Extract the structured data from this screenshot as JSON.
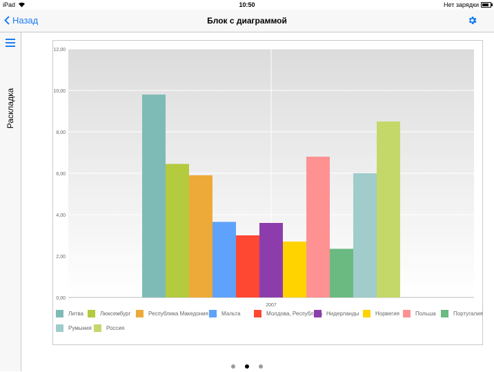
{
  "status_bar": {
    "device": "iPad",
    "time": "10:50",
    "charging": "Нет зарядки"
  },
  "nav": {
    "back_label": "Назад",
    "title": "Блок с диаграммой"
  },
  "sidebar": {
    "label": "Раскладка"
  },
  "pager": {
    "count": 3,
    "active": 1
  },
  "colors": {
    "accent": "#1a7cf4"
  },
  "chart_data": {
    "type": "bar",
    "categories": [
      "2007"
    ],
    "ylim": [
      0,
      12
    ],
    "yticks": [
      "0,00",
      "2,00",
      "4,00",
      "6,00",
      "8,00",
      "10,00",
      "12,00"
    ],
    "grid": true,
    "legend_position": "bottom",
    "series": [
      {
        "name": "Литва",
        "values": [
          9.8
        ],
        "color": "#7fbbb6"
      },
      {
        "name": "Люксембург",
        "values": [
          6.45
        ],
        "color": "#b4ca3f"
      },
      {
        "name": "Республика Македония",
        "values": [
          5.9
        ],
        "color": "#eeaa38"
      },
      {
        "name": "Мальта",
        "values": [
          3.65
        ],
        "color": "#5ea2fb"
      },
      {
        "name": "Молдова, Республика",
        "values": [
          3.0
        ],
        "color": "#fe4832"
      },
      {
        "name": "Нидерланды",
        "values": [
          3.6
        ],
        "color": "#8c3dab"
      },
      {
        "name": "Норвегия",
        "values": [
          2.7
        ],
        "color": "#ffd300"
      },
      {
        "name": "Польша",
        "values": [
          6.8
        ],
        "color": "#fe9192"
      },
      {
        "name": "Португалия",
        "values": [
          2.35
        ],
        "color": "#6aba81"
      },
      {
        "name": "Румыния",
        "values": [
          6.0
        ],
        "color": "#a0cccb"
      },
      {
        "name": "Россия",
        "values": [
          8.5
        ],
        "color": "#c4d86a"
      }
    ]
  }
}
